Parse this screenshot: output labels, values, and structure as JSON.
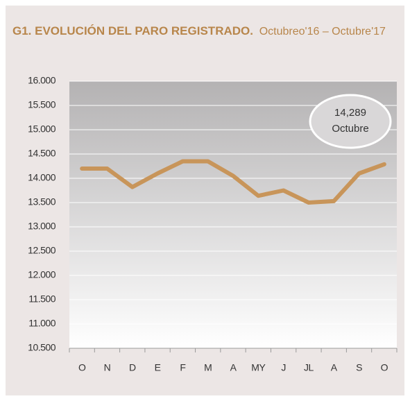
{
  "chart_data": {
    "type": "line",
    "title": "G1. EVOLUCIÓN DEL PARO REGISTRADO.",
    "subtitle": "Octubreo'16 – Octubre'17",
    "categories": [
      "O",
      "N",
      "D",
      "E",
      "F",
      "M",
      "A",
      "MY",
      "J",
      "JL",
      "A",
      "S",
      "O"
    ],
    "series": [
      {
        "name": "Paro registrado",
        "color": "#c8955a",
        "values": [
          14200,
          14200,
          13820,
          14100,
          14350,
          14350,
          14050,
          13640,
          13750,
          13500,
          13530,
          14100,
          14289
        ]
      }
    ],
    "ylim": [
      10500,
      16000
    ],
    "yticks": [
      {
        "value": 10500,
        "label": "10.500"
      },
      {
        "value": 11000,
        "label": "11.000"
      },
      {
        "value": 11500,
        "label": "11.500"
      },
      {
        "value": 12000,
        "label": "12.000"
      },
      {
        "value": 12500,
        "label": "12.500"
      },
      {
        "value": 13000,
        "label": "13.000"
      },
      {
        "value": 13500,
        "label": "13.500"
      },
      {
        "value": 14000,
        "label": "14.000"
      },
      {
        "value": 14500,
        "label": "14.500"
      },
      {
        "value": 15000,
        "label": "15.000"
      },
      {
        "value": 15500,
        "label": "15.500"
      },
      {
        "value": 16000,
        "label": "16.000"
      }
    ],
    "grid": true,
    "annotation": {
      "value": "14,289",
      "label": "Octubre"
    }
  }
}
